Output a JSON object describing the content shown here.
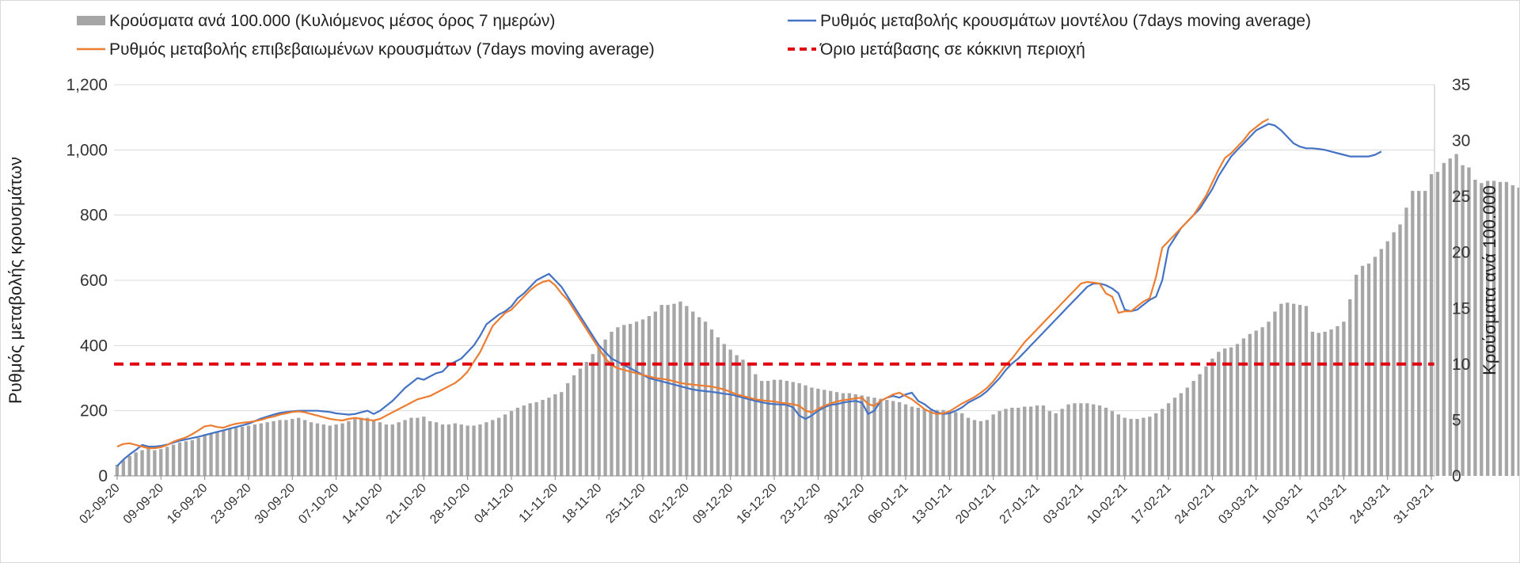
{
  "chart_data": {
    "type": "bar",
    "title": "",
    "ylabel": "Ρυθμός μεταβολής κρουσμάτων",
    "y2label": "Κρούσματα ανά 100.000",
    "ylim": [
      0,
      1200
    ],
    "y2lim": [
      0,
      35
    ],
    "yticks": [
      "0",
      "200",
      "400",
      "600",
      "800",
      "1,000",
      "1,200"
    ],
    "y2ticks": [
      "0",
      "5",
      "10",
      "15",
      "20",
      "25",
      "30",
      "35"
    ],
    "grid": true,
    "legend_position": "top",
    "threshold": 343,
    "x_labels": [
      "02-09-20",
      "09-09-20",
      "16-09-20",
      "23-09-20",
      "30-09-20",
      "07-10-20",
      "14-10-20",
      "21-10-20",
      "28-10-20",
      "04-11-20",
      "11-11-20",
      "18-11-20",
      "25-11-20",
      "02-12-20",
      "09-12-20",
      "16-12-20",
      "23-12-20",
      "30-12-20",
      "06-01-21",
      "13-01-21",
      "20-01-21",
      "27-01-21",
      "03-02-21",
      "10-02-21",
      "17-02-21",
      "24-02-21",
      "03-03-21",
      "10-03-21",
      "17-03-21",
      "24-03-21",
      "31-03-21"
    ],
    "series": [
      {
        "name": "Κρούσματα ανά 100.000 (Κυλιόμενος μέσος όρος 7 ημερών)",
        "kind": "bar",
        "axis": "right",
        "color": "#a6a6a6",
        "values": [
          1.0,
          1.4,
          1.8,
          2.1,
          2.3,
          2.5,
          2.3,
          2.4,
          2.6,
          2.8,
          3.0,
          3.1,
          3.2,
          3.4,
          3.6,
          3.8,
          4.0,
          4.1,
          4.2,
          4.3,
          4.4,
          4.5,
          4.6,
          4.7,
          4.8,
          4.9,
          5.0,
          5.0,
          5.1,
          5.2,
          5.0,
          4.8,
          4.7,
          4.6,
          4.5,
          4.6,
          4.7,
          4.9,
          5.1,
          5.2,
          5.2,
          5.0,
          4.8,
          4.6,
          4.6,
          4.8,
          5.0,
          5.2,
          5.2,
          5.3,
          4.9,
          4.8,
          4.6,
          4.6,
          4.7,
          4.6,
          4.5,
          4.5,
          4.6,
          4.8,
          5.0,
          5.2,
          5.5,
          5.8,
          6.1,
          6.3,
          6.5,
          6.6,
          6.8,
          7.0,
          7.3,
          7.5,
          8.3,
          9.0,
          9.6,
          10.2,
          10.9,
          11.5,
          12.2,
          12.9,
          13.3,
          13.5,
          13.6,
          13.8,
          14.0,
          14.3,
          14.7,
          15.3,
          15.3,
          15.4,
          15.6,
          15.2,
          14.7,
          14.2,
          13.8,
          13.1,
          12.4,
          11.8,
          11.3,
          10.8,
          10.4,
          9.9,
          9.1,
          8.5,
          8.5,
          8.6,
          8.6,
          8.5,
          8.4,
          8.3,
          8.1,
          7.9,
          7.8,
          7.7,
          7.6,
          7.5,
          7.4,
          7.4,
          7.3,
          7.2,
          7.1,
          7.0,
          6.9,
          6.8,
          6.7,
          6.6,
          6.4,
          6.2,
          6.1,
          6.0,
          5.9,
          5.9,
          5.9,
          5.8,
          5.7,
          5.6,
          5.2,
          5.0,
          4.9,
          5.0,
          5.5,
          5.8,
          6.0,
          6.1,
          6.1,
          6.2,
          6.2,
          6.3,
          6.3,
          5.8,
          5.6,
          6.0,
          6.4,
          6.5,
          6.5,
          6.5,
          6.4,
          6.3,
          6.1,
          5.8,
          5.5,
          5.2,
          5.1,
          5.1,
          5.2,
          5.3,
          5.6,
          6.0,
          6.5,
          7.0,
          7.4,
          7.9,
          8.5,
          9.1,
          9.8,
          10.5,
          11.1,
          11.4,
          11.5,
          11.8,
          12.3,
          12.7,
          13.0,
          13.3,
          13.8,
          14.7,
          15.4,
          15.5,
          15.4,
          15.3,
          15.2,
          12.9,
          12.8,
          12.9,
          13.1,
          13.4,
          13.8,
          15.8,
          18.0,
          18.8,
          19.0,
          19.6,
          20.3,
          21.0,
          21.8,
          22.5,
          24.0,
          25.5,
          25.5,
          25.5,
          27.0,
          27.2,
          28.0,
          28.4,
          28.8,
          27.8,
          27.6,
          26.5,
          26.2,
          26.4,
          26.4,
          26.3,
          26.3,
          26.0,
          25.8,
          25.6,
          25.5,
          25.5,
          25.5,
          25.5,
          25.6,
          25.8,
          26.2
        ]
      },
      {
        "name": "Ρυθμός μεταβολής κρουσμάτων μοντέλου (7days moving average)",
        "kind": "line",
        "axis": "left",
        "color": "#4472c4",
        "values": [
          30,
          50,
          66,
          80,
          95,
          90,
          90,
          92,
          96,
          102,
          108,
          112,
          116,
          120,
          125,
          130,
          135,
          140,
          145,
          150,
          155,
          160,
          168,
          176,
          182,
          188,
          193,
          196,
          198,
          200,
          200,
          200,
          200,
          198,
          196,
          192,
          190,
          188,
          190,
          195,
          200,
          190,
          200,
          215,
          230,
          250,
          270,
          285,
          300,
          295,
          305,
          315,
          320,
          340,
          350,
          360,
          380,
          400,
          430,
          465,
          480,
          495,
          505,
          520,
          545,
          560,
          580,
          600,
          610,
          620,
          600,
          580,
          550,
          520,
          490,
          460,
          430,
          400,
          380,
          360,
          350,
          340,
          330,
          320,
          310,
          300,
          295,
          290,
          285,
          280,
          275,
          270,
          265,
          262,
          260,
          258,
          255,
          252,
          250,
          245,
          240,
          235,
          230,
          226,
          222,
          220,
          219,
          218,
          210,
          185,
          175,
          185,
          200,
          210,
          218,
          220,
          225,
          228,
          230,
          225,
          190,
          200,
          230,
          240,
          245,
          240,
          250,
          255,
          230,
          220,
          205,
          195,
          190,
          192,
          200,
          210,
          225,
          235,
          245,
          260,
          280,
          300,
          325,
          345,
          360,
          380,
          400,
          420,
          440,
          460,
          480,
          500,
          520,
          540,
          560,
          580,
          590,
          590,
          585,
          575,
          560,
          510,
          505,
          510,
          525,
          540,
          550,
          600,
          700,
          730,
          760,
          780,
          800,
          820,
          850,
          880,
          920,
          950,
          980,
          1000,
          1020,
          1040,
          1060,
          1070,
          1080,
          1075,
          1060,
          1040,
          1020,
          1010,
          1005,
          1005,
          1003,
          1000,
          995,
          990,
          985,
          980,
          980,
          980,
          980,
          985,
          995
        ]
      },
      {
        "name": "Ρυθμός μεταβολής επιβεβαιωμένων κρουσμάτων (7days moving average)",
        "kind": "line",
        "axis": "left",
        "color": "#ed7d31",
        "values": [
          90,
          98,
          100,
          95,
          90,
          85,
          85,
          88,
          95,
          105,
          112,
          118,
          128,
          140,
          152,
          155,
          150,
          148,
          155,
          160,
          163,
          165,
          168,
          172,
          178,
          182,
          188,
          192,
          196,
          198,
          195,
          190,
          185,
          180,
          175,
          172,
          170,
          175,
          178,
          175,
          172,
          170,
          175,
          185,
          195,
          205,
          215,
          225,
          235,
          240,
          245,
          255,
          265,
          275,
          285,
          300,
          320,
          350,
          380,
          420,
          460,
          480,
          500,
          510,
          530,
          550,
          570,
          585,
          595,
          600,
          585,
          560,
          540,
          510,
          480,
          450,
          420,
          390,
          360,
          340,
          330,
          325,
          320,
          315,
          310,
          305,
          300,
          298,
          295,
          290,
          285,
          282,
          280,
          278,
          276,
          274,
          270,
          265,
          258,
          250,
          245,
          240,
          235,
          232,
          230,
          228,
          225,
          222,
          220,
          215,
          200,
          195,
          205,
          215,
          222,
          228,
          232,
          235,
          238,
          240,
          220,
          215,
          230,
          240,
          250,
          255,
          245,
          235,
          220,
          205,
          195,
          190,
          192,
          198,
          210,
          222,
          232,
          242,
          255,
          270,
          290,
          315,
          340,
          360,
          385,
          410,
          430,
          450,
          470,
          490,
          510,
          530,
          550,
          570,
          590,
          595,
          593,
          590,
          560,
          550,
          500,
          505,
          505,
          520,
          535,
          545,
          610,
          700,
          720,
          740,
          760,
          780,
          800,
          830,
          860,
          900,
          940,
          975,
          990,
          1010,
          1030,
          1055,
          1070,
          1085,
          1095
        ]
      },
      {
        "name": "Όριο μετάβασης σε κόκκινη περιοχή",
        "kind": "threshold",
        "axis": "left",
        "color": "#e0000e"
      }
    ]
  }
}
